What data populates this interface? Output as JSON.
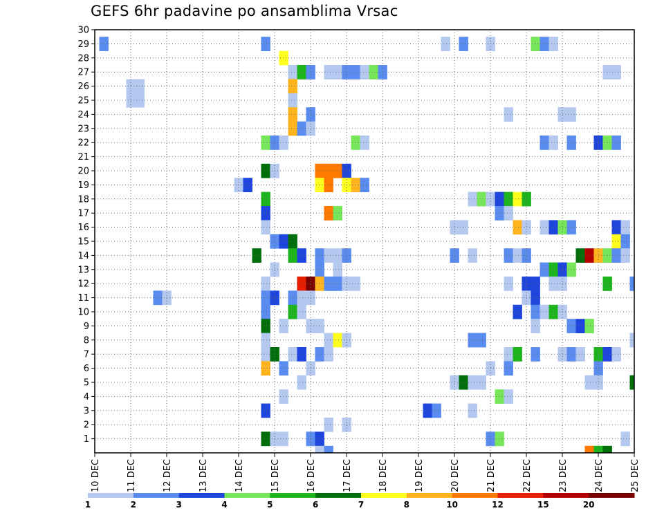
{
  "chart_data": {
    "type": "heatmap",
    "title": "GEFS 6hr padavine po ansamblima Vrsac",
    "xlabel": "",
    "ylabel": "",
    "x_ticks": [
      "10 DEC",
      "11 DEC",
      "12 DEC",
      "13 DEC",
      "14 DEC",
      "15 DEC",
      "16 DEC",
      "17 DEC",
      "18 DEC",
      "19 DEC",
      "20 DEC",
      "21 DEC",
      "22 DEC",
      "23 DEC",
      "24 DEC",
      "25 DEC"
    ],
    "y_ticks": [
      "1",
      "2",
      "3",
      "4",
      "5",
      "6",
      "7",
      "8",
      "9",
      "10",
      "11",
      "12",
      "13",
      "14",
      "15",
      "16",
      "17",
      "18",
      "19",
      "20",
      "21",
      "22",
      "23",
      "24",
      "25",
      "26",
      "27",
      "28",
      "29",
      "30"
    ],
    "xlim": [
      0,
      60
    ],
    "ylim": [
      0,
      30
    ],
    "grid": true,
    "note_x": "x is the 6-hour step index counted from 10 DEC 00z (4 steps per day); y is the ensemble member number",
    "colorbar": {
      "position": "bottom",
      "labels": [
        "1",
        "2",
        "3",
        "4",
        "5",
        "6",
        "7",
        "8",
        "10",
        "12",
        "15",
        "20"
      ],
      "colors": [
        "#b4c8f0",
        "#5a8cf0",
        "#1e46dc",
        "#78e65a",
        "#1eb41e",
        "#006e0a",
        "#ffff1e",
        "#ffb41e",
        "#ff7800",
        "#e61e00",
        "#b40000",
        "#780000"
      ]
    },
    "cells": [
      [
        1,
        29,
        1
      ],
      [
        19,
        29,
        1
      ],
      [
        39,
        29,
        0
      ],
      [
        41,
        29,
        1
      ],
      [
        44,
        29,
        0
      ],
      [
        49,
        29,
        3
      ],
      [
        50,
        29,
        1
      ],
      [
        51,
        29,
        0
      ],
      [
        21,
        28,
        6
      ],
      [
        22,
        27,
        0
      ],
      [
        23,
        27,
        4
      ],
      [
        24,
        27,
        1
      ],
      [
        26,
        27,
        0
      ],
      [
        27,
        27,
        0
      ],
      [
        28,
        27,
        1
      ],
      [
        29,
        27,
        1
      ],
      [
        30,
        27,
        0
      ],
      [
        31,
        27,
        3
      ],
      [
        32,
        27,
        1
      ],
      [
        57,
        27,
        0
      ],
      [
        58,
        27,
        0
      ],
      [
        4,
        26,
        0
      ],
      [
        5,
        26,
        0
      ],
      [
        22,
        26,
        7
      ],
      [
        4,
        25,
        0
      ],
      [
        5,
        25,
        0
      ],
      [
        22,
        25,
        0
      ],
      [
        22,
        24,
        7
      ],
      [
        24,
        24,
        1
      ],
      [
        46,
        24,
        0
      ],
      [
        52,
        24,
        0
      ],
      [
        53,
        24,
        0
      ],
      [
        22,
        23,
        7
      ],
      [
        23,
        23,
        1
      ],
      [
        24,
        23,
        0
      ],
      [
        19,
        22,
        3
      ],
      [
        20,
        22,
        1
      ],
      [
        21,
        22,
        0
      ],
      [
        29,
        22,
        3
      ],
      [
        30,
        22,
        0
      ],
      [
        50,
        22,
        1
      ],
      [
        51,
        22,
        0
      ],
      [
        53,
        22,
        1
      ],
      [
        56,
        22,
        2
      ],
      [
        57,
        22,
        3
      ],
      [
        58,
        22,
        1
      ],
      [
        19,
        20,
        5
      ],
      [
        20,
        20,
        0
      ],
      [
        25,
        20,
        8
      ],
      [
        26,
        20,
        8
      ],
      [
        27,
        20,
        8
      ],
      [
        28,
        20,
        2
      ],
      [
        16,
        19,
        0
      ],
      [
        17,
        19,
        2
      ],
      [
        25,
        19,
        6
      ],
      [
        26,
        19,
        8
      ],
      [
        28,
        19,
        6
      ],
      [
        29,
        19,
        7
      ],
      [
        30,
        19,
        1
      ],
      [
        19,
        18,
        4
      ],
      [
        42,
        18,
        0
      ],
      [
        43,
        18,
        3
      ],
      [
        44,
        18,
        0
      ],
      [
        45,
        18,
        2
      ],
      [
        46,
        18,
        4
      ],
      [
        47,
        18,
        6
      ],
      [
        48,
        18,
        4
      ],
      [
        19,
        17,
        2
      ],
      [
        26,
        17,
        8
      ],
      [
        27,
        17,
        3
      ],
      [
        45,
        17,
        1
      ],
      [
        46,
        17,
        0
      ],
      [
        19,
        16,
        0
      ],
      [
        40,
        16,
        0
      ],
      [
        41,
        16,
        0
      ],
      [
        47,
        16,
        7
      ],
      [
        48,
        16,
        0
      ],
      [
        50,
        16,
        0
      ],
      [
        51,
        16,
        2
      ],
      [
        52,
        16,
        3
      ],
      [
        53,
        16,
        1
      ],
      [
        58,
        16,
        2
      ],
      [
        59,
        16,
        0
      ],
      [
        20,
        15,
        1
      ],
      [
        21,
        15,
        2
      ],
      [
        22,
        15,
        5
      ],
      [
        58,
        15,
        6
      ],
      [
        59,
        15,
        1
      ],
      [
        18,
        14,
        5
      ],
      [
        22,
        14,
        4
      ],
      [
        23,
        14,
        2
      ],
      [
        25,
        14,
        1
      ],
      [
        26,
        14,
        0
      ],
      [
        27,
        14,
        0
      ],
      [
        28,
        14,
        1
      ],
      [
        40,
        14,
        1
      ],
      [
        42,
        14,
        0
      ],
      [
        46,
        14,
        1
      ],
      [
        47,
        14,
        0
      ],
      [
        48,
        14,
        1
      ],
      [
        54,
        14,
        5
      ],
      [
        55,
        14,
        10
      ],
      [
        56,
        14,
        7
      ],
      [
        57,
        14,
        3
      ],
      [
        58,
        14,
        1
      ],
      [
        59,
        14,
        0
      ],
      [
        20,
        13,
        0
      ],
      [
        25,
        13,
        1
      ],
      [
        27,
        13,
        0
      ],
      [
        50,
        13,
        1
      ],
      [
        51,
        13,
        4
      ],
      [
        52,
        13,
        2
      ],
      [
        53,
        13,
        3
      ],
      [
        19,
        12,
        0
      ],
      [
        23,
        12,
        9
      ],
      [
        24,
        12,
        11
      ],
      [
        25,
        12,
        7
      ],
      [
        26,
        12,
        1
      ],
      [
        27,
        12,
        1
      ],
      [
        28,
        12,
        0
      ],
      [
        29,
        12,
        0
      ],
      [
        46,
        12,
        0
      ],
      [
        48,
        12,
        2
      ],
      [
        49,
        12,
        2
      ],
      [
        51,
        12,
        0
      ],
      [
        52,
        12,
        0
      ],
      [
        57,
        12,
        4
      ],
      [
        60,
        12,
        1
      ],
      [
        7,
        11,
        1
      ],
      [
        8,
        11,
        0
      ],
      [
        19,
        11,
        1
      ],
      [
        20,
        11,
        2
      ],
      [
        22,
        11,
        1
      ],
      [
        23,
        11,
        0
      ],
      [
        24,
        11,
        0
      ],
      [
        48,
        11,
        0
      ],
      [
        49,
        11,
        2
      ],
      [
        19,
        10,
        1
      ],
      [
        22,
        10,
        4
      ],
      [
        23,
        10,
        0
      ],
      [
        47,
        10,
        2
      ],
      [
        49,
        10,
        1
      ],
      [
        50,
        10,
        0
      ],
      [
        51,
        10,
        4
      ],
      [
        52,
        10,
        0
      ],
      [
        19,
        9,
        5
      ],
      [
        21,
        9,
        0
      ],
      [
        24,
        9,
        0
      ],
      [
        25,
        9,
        0
      ],
      [
        49,
        9,
        0
      ],
      [
        53,
        9,
        1
      ],
      [
        54,
        9,
        2
      ],
      [
        55,
        9,
        3
      ],
      [
        19,
        8,
        0
      ],
      [
        26,
        8,
        0
      ],
      [
        27,
        8,
        6
      ],
      [
        28,
        8,
        0
      ],
      [
        42,
        8,
        1
      ],
      [
        43,
        8,
        1
      ],
      [
        60,
        8,
        0
      ],
      [
        19,
        7,
        0
      ],
      [
        20,
        7,
        5
      ],
      [
        22,
        7,
        0
      ],
      [
        23,
        7,
        2
      ],
      [
        25,
        7,
        1
      ],
      [
        26,
        7,
        0
      ],
      [
        46,
        7,
        0
      ],
      [
        47,
        7,
        4
      ],
      [
        49,
        7,
        1
      ],
      [
        52,
        7,
        0
      ],
      [
        53,
        7,
        1
      ],
      [
        54,
        7,
        0
      ],
      [
        56,
        7,
        4
      ],
      [
        57,
        7,
        2
      ],
      [
        58,
        7,
        0
      ],
      [
        19,
        6,
        7
      ],
      [
        21,
        6,
        1
      ],
      [
        24,
        6,
        0
      ],
      [
        44,
        6,
        0
      ],
      [
        46,
        6,
        1
      ],
      [
        56,
        6,
        1
      ],
      [
        23,
        5,
        0
      ],
      [
        40,
        5,
        0
      ],
      [
        41,
        5,
        5
      ],
      [
        42,
        5,
        0
      ],
      [
        43,
        5,
        0
      ],
      [
        55,
        5,
        0
      ],
      [
        56,
        5,
        0
      ],
      [
        60,
        5,
        5
      ],
      [
        21,
        4,
        0
      ],
      [
        45,
        4,
        3
      ],
      [
        46,
        4,
        0
      ],
      [
        19,
        3,
        2
      ],
      [
        37,
        3,
        2
      ],
      [
        38,
        3,
        1
      ],
      [
        42,
        3,
        0
      ],
      [
        26,
        2,
        0
      ],
      [
        28,
        2,
        0
      ],
      [
        19,
        1,
        5
      ],
      [
        20,
        1,
        0
      ],
      [
        21,
        1,
        0
      ],
      [
        24,
        1,
        1
      ],
      [
        25,
        1,
        2
      ],
      [
        44,
        1,
        1
      ],
      [
        45,
        1,
        3
      ],
      [
        59,
        1,
        0
      ],
      [
        25,
        0,
        0
      ],
      [
        26,
        0,
        1
      ],
      [
        55,
        0,
        8
      ],
      [
        56,
        0,
        4
      ],
      [
        57,
        0,
        5
      ]
    ]
  }
}
